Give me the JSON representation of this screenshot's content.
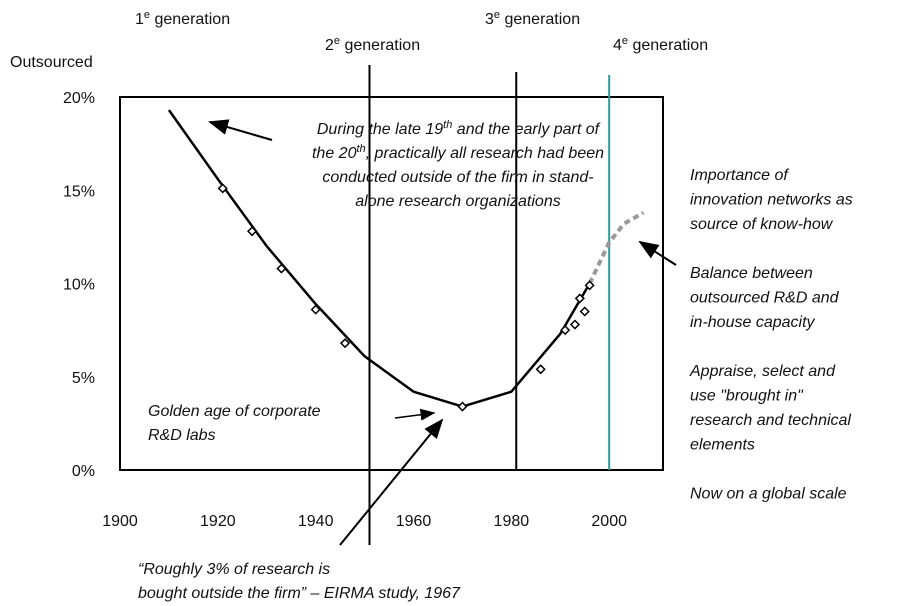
{
  "chart_data": {
    "type": "line",
    "y_label": "Outsourced",
    "xlim": [
      1900,
      2011
    ],
    "xticks": [
      1900,
      1920,
      1940,
      1960,
      1980,
      2000
    ],
    "ylim": [
      0,
      20
    ],
    "yticks": [
      {
        "value": 0,
        "label": "0%"
      },
      {
        "value": 5,
        "label": "5%"
      },
      {
        "value": 10,
        "label": "10%"
      },
      {
        "value": 15,
        "label": "15%"
      },
      {
        "value": 20,
        "label": "20%"
      }
    ],
    "generations": [
      {
        "num": "1",
        "sup": "e",
        "text": " generation"
      },
      {
        "num": "2",
        "sup": "e",
        "text": " generation",
        "x": 1951
      },
      {
        "num": "3",
        "sup": "e",
        "text": " generation",
        "x": 1981
      },
      {
        "num": "4",
        "sup": "e",
        "text": " generation",
        "x": 2000,
        "color": "#2a9a9e"
      }
    ],
    "series": [
      {
        "style": "solid",
        "color": "#000000",
        "x": [
          1910,
          1920,
          1930,
          1940,
          1950,
          1960,
          1970,
          1980,
          1990,
          1996
        ],
        "values": [
          19.3,
          15.6,
          12,
          8.9,
          6.1,
          4.2,
          3.4,
          4.2,
          7.3,
          10
        ]
      },
      {
        "style": "dashed",
        "color": "#999999",
        "x": [
          1996,
          2000,
          2003,
          2007
        ],
        "values": [
          10,
          12.2,
          13.2,
          13.8
        ]
      },
      {
        "style": "markers",
        "color": "#000000",
        "x": [
          1921,
          1927,
          1933,
          1940,
          1946,
          1970,
          1986,
          1991,
          1993,
          1994,
          1995,
          1996
        ],
        "values": [
          15.1,
          12.8,
          10.8,
          8.6,
          6.8,
          3.4,
          5.4,
          7.5,
          7.8,
          9.2,
          8.5,
          9.9
        ]
      }
    ],
    "annotations": {
      "early": [
        [
          {
            "t": "During the late 19"
          },
          {
            "sup": "th"
          },
          {
            "t": " and the early part of"
          }
        ],
        [
          {
            "t": "the 20"
          },
          {
            "sup": "th"
          },
          {
            "t": ", practically all research had been"
          }
        ],
        [
          {
            "t": "conducted outside of the firm in stand-"
          }
        ],
        [
          {
            "t": "alone research organizations"
          }
        ]
      ],
      "golden": [
        "Golden age of corporate",
        "R&D labs"
      ],
      "quote": [
        "“Roughly 3% of research is",
        "bought outside the firm” – EIRMA study, 1967"
      ],
      "right": [
        "Importance of",
        "innovation networks as",
        "source of know-how",
        "",
        "Balance between",
        "outsourced R&D and",
        "in-house capacity",
        "",
        "Appraise, select and",
        "use \"brought in\"",
        "research and technical",
        "elements",
        "",
        "Now on a global scale"
      ]
    }
  }
}
